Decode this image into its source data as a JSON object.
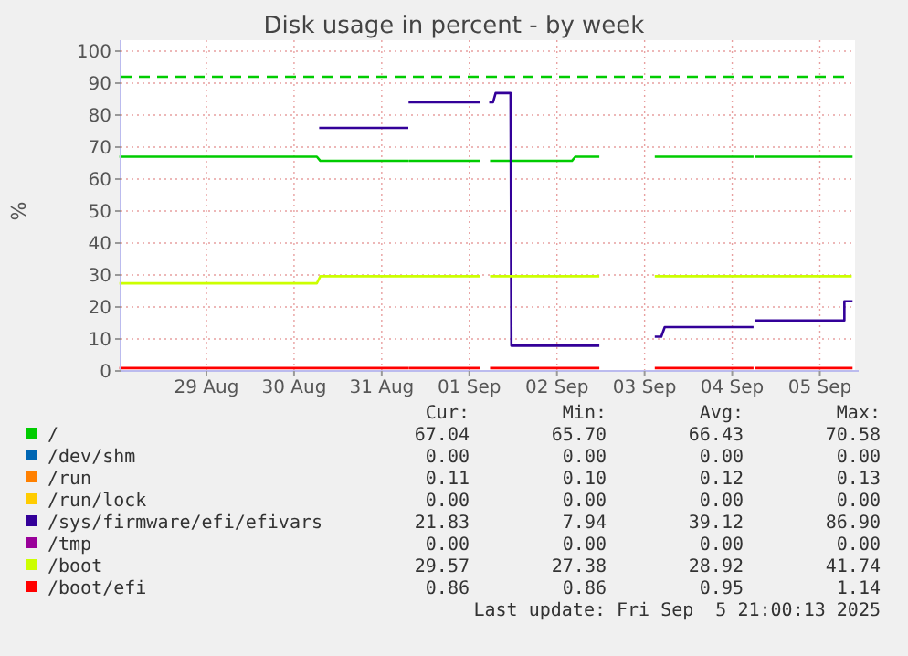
{
  "chart_data": {
    "type": "line",
    "title": "Disk usage in percent - by week",
    "ylabel": "%",
    "xlim": [
      "2025-08-28T00:29",
      "2025-09-05T08:38"
    ],
    "xticks": [
      {
        "value": "2025-08-29",
        "label": "29 Aug"
      },
      {
        "value": "2025-08-30",
        "label": "30 Aug"
      },
      {
        "value": "2025-08-31",
        "label": "31 Aug"
      },
      {
        "value": "2025-09-01",
        "label": "01 Sep"
      },
      {
        "value": "2025-09-02",
        "label": "02 Sep"
      },
      {
        "value": "2025-09-03",
        "label": "03 Sep"
      },
      {
        "value": "2025-09-04",
        "label": "04 Sep"
      },
      {
        "value": "2025-09-05",
        "label": "05 Sep"
      }
    ],
    "ylim": [
      0,
      100
    ],
    "yticks": [
      0,
      10,
      20,
      30,
      40,
      50,
      60,
      70,
      80,
      90,
      100
    ],
    "grid": true,
    "legend": "bottom",
    "line_style": "solid",
    "marker": "none",
    "ref_lines": [
      {
        "axis": "y",
        "value": 92,
        "color": "#00cc00",
        "line_style": "dashed"
      }
    ],
    "series": [
      {
        "name": "/",
        "color": "#00cc00",
        "x": [
          "2025-08-28T00:29",
          "2025-08-30T06:14",
          "2025-08-30T07:12",
          "2025-08-31T06:58",
          "2025-08-31T07:12",
          "2025-08-31T07:41",
          "2025-09-01T02:38",
          "2025-09-01T04:19",
          "2025-09-01T06:00",
          "2025-09-02T04:05",
          "2025-09-02T05:02",
          "2025-09-02T11:17",
          "2025-09-02T19:12",
          "2025-09-03T03:07",
          "2025-09-04T05:31",
          "2025-09-04T06:00",
          "2025-09-04T06:29",
          "2025-09-05T06:14",
          "2025-09-05T08:38"
        ],
        "values": [
          67.0,
          67.0,
          65.7,
          65.7,
          null,
          65.7,
          65.7,
          null,
          65.7,
          65.7,
          67.0,
          67.0,
          null,
          67.0,
          67.0,
          null,
          67.0,
          67.0,
          67.0
        ]
      },
      {
        "name": "/dev/shm",
        "color": "#0066b3"
      },
      {
        "name": "/run",
        "color": "#ff8000"
      },
      {
        "name": "/run/lock",
        "color": "#ffcc00"
      },
      {
        "name": "/sys/firmware/efi/efivars",
        "color": "#330099",
        "x": [
          "2025-08-30T07:12",
          "2025-08-31T06:58",
          "2025-08-31T07:12",
          "2025-08-31T07:41",
          "2025-09-01T02:38",
          "2025-09-01T04:19",
          "2025-09-01T05:46",
          "2025-09-01T06:29",
          "2025-09-01T07:12",
          "2025-09-01T11:17",
          "2025-09-01T11:31",
          "2025-09-02T11:17",
          "2025-09-02T19:12",
          "2025-09-03T03:07",
          "2025-09-03T04:34",
          "2025-09-03T05:31",
          "2025-09-04T05:31",
          "2025-09-04T06:00",
          "2025-09-04T06:29",
          "2025-09-05T06:14",
          "2025-09-05T06:43",
          "2025-09-05T06:43",
          "2025-09-05T08:38"
        ],
        "values": [
          76,
          76,
          null,
          84,
          84,
          null,
          84,
          84,
          86.9,
          86.9,
          7.9,
          7.9,
          null,
          10.7,
          10.7,
          13.7,
          13.7,
          null,
          15.8,
          15.8,
          15.8,
          21.8,
          21.8
        ]
      },
      {
        "name": "/tmp",
        "color": "#990099"
      },
      {
        "name": "/boot",
        "color": "#ccff00",
        "x": [
          "2025-08-28T00:29",
          "2025-08-30T06:14",
          "2025-08-30T07:12",
          "2025-09-01T02:38",
          "2025-09-01T04:19",
          "2025-09-01T06:00",
          "2025-09-02T11:17",
          "2025-09-02T19:12",
          "2025-09-03T03:07",
          "2025-09-05T08:24"
        ],
        "values": [
          27.4,
          27.4,
          29.6,
          29.6,
          null,
          29.6,
          29.6,
          null,
          29.6,
          29.6
        ]
      },
      {
        "name": "/boot/efi",
        "color": "#ff0000",
        "x": [
          "2025-08-28T00:29",
          "2025-08-31T06:58",
          "2025-08-31T07:12",
          "2025-08-31T07:41",
          "2025-09-01T02:38",
          "2025-09-01T04:19",
          "2025-09-01T06:00",
          "2025-09-02T11:17",
          "2025-09-02T19:12",
          "2025-09-03T03:07",
          "2025-09-04T05:31",
          "2025-09-04T06:00",
          "2025-09-04T06:29",
          "2025-09-05T06:14",
          "2025-09-05T08:38"
        ],
        "values": [
          0.9,
          0.9,
          null,
          0.9,
          0.9,
          null,
          0.9,
          0.9,
          null,
          0.9,
          0.9,
          null,
          0.9,
          0.9,
          0.9
        ]
      }
    ],
    "annotations": [
      "Cur:",
      "Min:",
      "Avg:",
      "Max:",
      "67.04",
      "65.70",
      "66.43",
      "70.58",
      "0.00",
      "0.00",
      "0.00",
      "0.00",
      "0.11",
      "0.10",
      "0.12",
      "0.13",
      "0.00",
      "0.00",
      "0.00",
      "0.00",
      "21.83",
      "7.94",
      "39.12",
      "86.90",
      "0.00",
      "0.00",
      "0.00",
      "0.00",
      "29.57",
      "27.38",
      "28.92",
      "41.74",
      "0.86",
      "0.86",
      "0.95",
      "1.14",
      "Last update: Fri Sep  5 21:00:13 2025"
    ]
  }
}
